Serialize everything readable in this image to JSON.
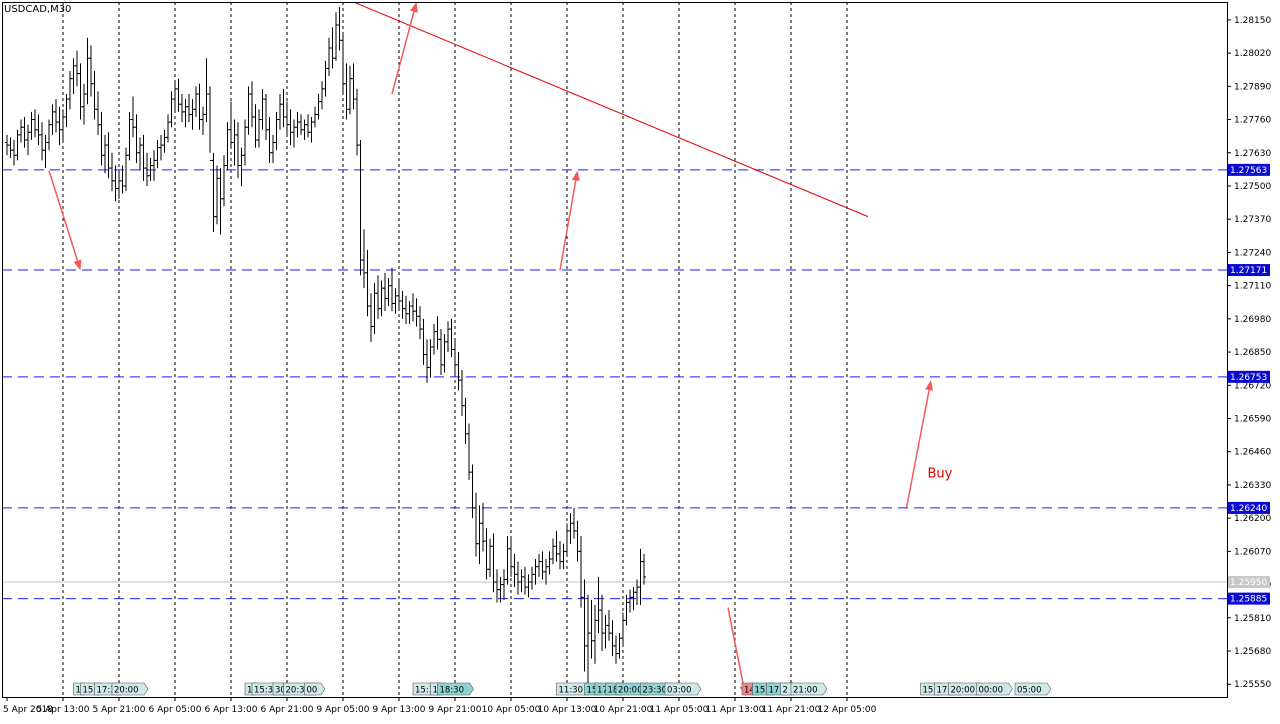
{
  "chart_data": {
    "type": "candlestick-ohlc-bars",
    "title": "USDCAD,M30",
    "symbol": "USDCAD",
    "timeframe": "M30",
    "ylim": [
      1.255,
      1.2822
    ],
    "current_price": 1.2595,
    "current_price_label": "1.25950",
    "y_ticks": [
      "1.28150",
      "1.28020",
      "1.27890",
      "1.27760",
      "1.27630",
      "1.27500",
      "1.27370",
      "1.27240",
      "1.27110",
      "1.26980",
      "1.26850",
      "1.26720",
      "1.26590",
      "1.26460",
      "1.26330",
      "1.26200",
      "1.26070",
      "1.25940",
      "1.25810",
      "1.25680",
      "1.25550"
    ],
    "x_ticks": [
      "5 Apr 2018",
      "5 Apr 13:00",
      "5 Apr 21:00",
      "6 Apr 05:00",
      "6 Apr 13:00",
      "6 Apr 21:00",
      "9 Apr 05:00",
      "9 Apr 13:00",
      "9 Apr 21:00",
      "10 Apr 05:00",
      "10 Apr 13:00",
      "10 Apr 21:00",
      "11 Apr 05:00",
      "11 Apr 13:00",
      "11 Apr 21:00",
      "12 Apr 05:00"
    ],
    "x_tick_index": [
      0,
      16,
      32,
      48,
      64,
      80,
      96,
      112,
      128,
      144,
      160,
      176,
      192,
      208,
      224,
      240
    ],
    "horizontal_levels": [
      {
        "value": 1.27563,
        "label": "1.27563"
      },
      {
        "value": 1.27171,
        "label": "1.27171"
      },
      {
        "value": 1.26753,
        "label": "1.26753"
      },
      {
        "value": 1.2624,
        "label": "1.26240"
      },
      {
        "value": 1.25885,
        "label": "1.25885"
      }
    ],
    "trendline": {
      "from": {
        "bar": 99,
        "price": 1.2822
      },
      "to": {
        "bar": 246,
        "price": 1.2738
      }
    },
    "arrows": [
      {
        "from": {
          "bar": 12,
          "price": 1.2756
        },
        "to": {
          "bar": 21,
          "price": 1.2717
        }
      },
      {
        "from": {
          "bar": 158,
          "price": 1.2717
        },
        "to": {
          "bar": 163,
          "price": 1.2756
        }
      },
      {
        "from": {
          "bar": 257,
          "price": 1.2624
        },
        "to": {
          "bar": 264,
          "price": 1.2674
        }
      },
      {
        "from": {
          "bar": 110,
          "price": 1.2786
        },
        "to": {
          "bar": 117,
          "price": 1.2822
        }
      },
      {
        "from": {
          "bar": 206,
          "price": 1.2585
        },
        "to": {
          "bar": 211,
          "price": 1.2549
        }
      }
    ],
    "annotation": {
      "text": "Buy",
      "bar": 263,
      "price": 1.2636
    },
    "event_markers": [
      {
        "bar": 19,
        "text": "1",
        "color": "#cfe8e8"
      },
      {
        "bar": 21,
        "text": "15:",
        "color": "#cfe8e8"
      },
      {
        "bar": 25,
        "text": "17:3",
        "color": "#cfe8e8"
      },
      {
        "bar": 30,
        "text": "20:00",
        "color": "#cfe8e8"
      },
      {
        "bar": 68,
        "text": "1",
        "color": "#cfe8e8"
      },
      {
        "bar": 70,
        "text": "15:30",
        "color": "#cfe8e8"
      },
      {
        "bar": 76,
        "text": "30",
        "color": "#cfe8e8"
      },
      {
        "bar": 79,
        "text": "20:30",
        "color": "#cfe8e8"
      },
      {
        "bar": 85,
        "text": "00",
        "color": "#cfe8e8"
      },
      {
        "bar": 116,
        "text": "15:1",
        "color": "#cfe8e8"
      },
      {
        "bar": 121,
        "text": "1",
        "color": "#cfe8e8"
      },
      {
        "bar": 123,
        "text": "18:30",
        "color": "#8fd4d4"
      },
      {
        "bar": 157,
        "text": "11:30",
        "color": "#cfe8e8"
      },
      {
        "bar": 165,
        "text": "15",
        "color": "#8fd4d4"
      },
      {
        "bar": 168,
        "text": "17",
        "color": "#8fd4d4"
      },
      {
        "bar": 171,
        "text": "18",
        "color": "#8fd4d4"
      },
      {
        "bar": 174,
        "text": "20:00",
        "color": "#8fd4d4"
      },
      {
        "bar": 181,
        "text": "23:30",
        "color": "#8fd4d4"
      },
      {
        "bar": 188,
        "text": "03:00",
        "color": "#cfe8e8"
      },
      {
        "bar": 210,
        "text": "14",
        "color": "#f28a8a"
      },
      {
        "bar": 213,
        "text": "15:",
        "color": "#8fd4d4"
      },
      {
        "bar": 217,
        "text": "17:3",
        "color": "#8fd4d4"
      },
      {
        "bar": 221,
        "text": "2",
        "color": "#cfe8e8"
      },
      {
        "bar": 224,
        "text": "21:00",
        "color": "#cfe8e8"
      },
      {
        "bar": 261,
        "text": "15:",
        "color": "#cfe8e8"
      },
      {
        "bar": 265,
        "text": "17:3",
        "color": "#cfe8e8"
      },
      {
        "bar": 269,
        "text": "20:00",
        "color": "#cfe8e8"
      },
      {
        "bar": 277,
        "text": "00:00",
        "color": "#cfe8e8"
      },
      {
        "bar": 288,
        "text": "05:00",
        "color": "#cfe8e8"
      }
    ],
    "bars": [
      [
        1.2767,
        1.277,
        1.2762,
        1.2766
      ],
      [
        1.2766,
        1.2769,
        1.2761,
        1.2764
      ],
      [
        1.2764,
        1.2768,
        1.2758,
        1.2762
      ],
      [
        1.2762,
        1.2772,
        1.276,
        1.277
      ],
      [
        1.277,
        1.2776,
        1.2767,
        1.2773
      ],
      [
        1.2773,
        1.2777,
        1.2765,
        1.2768
      ],
      [
        1.2768,
        1.2774,
        1.2762,
        1.2771
      ],
      [
        1.2771,
        1.2779,
        1.2768,
        1.2776
      ],
      [
        1.2776,
        1.278,
        1.2769,
        1.2772
      ],
      [
        1.2772,
        1.2778,
        1.2766,
        1.277
      ],
      [
        1.277,
        1.2775,
        1.276,
        1.2764
      ],
      [
        1.2764,
        1.277,
        1.2757,
        1.2767
      ],
      [
        1.2767,
        1.2776,
        1.2764,
        1.2774
      ],
      [
        1.2774,
        1.2782,
        1.277,
        1.2779
      ],
      [
        1.2779,
        1.2784,
        1.2771,
        1.2775
      ],
      [
        1.2775,
        1.2781,
        1.2766,
        1.2772
      ],
      [
        1.2772,
        1.278,
        1.2768,
        1.2777
      ],
      [
        1.2777,
        1.2786,
        1.2773,
        1.2784
      ],
      [
        1.2784,
        1.2795,
        1.278,
        1.2792
      ],
      [
        1.2792,
        1.28,
        1.2786,
        1.2797
      ],
      [
        1.2797,
        1.2803,
        1.2789,
        1.2794
      ],
      [
        1.2794,
        1.2798,
        1.2776,
        1.2781
      ],
      [
        1.2781,
        1.279,
        1.2774,
        1.2786
      ],
      [
        1.2786,
        1.2808,
        1.2782,
        1.28
      ],
      [
        1.28,
        1.2805,
        1.2785,
        1.279
      ],
      [
        1.279,
        1.2795,
        1.2776,
        1.278
      ],
      [
        1.278,
        1.2787,
        1.277,
        1.2774
      ],
      [
        1.2774,
        1.2779,
        1.2758,
        1.2762
      ],
      [
        1.2762,
        1.277,
        1.2755,
        1.2766
      ],
      [
        1.2766,
        1.2771,
        1.2753,
        1.2757
      ],
      [
        1.2757,
        1.2763,
        1.2748,
        1.2752
      ],
      [
        1.2752,
        1.2758,
        1.2744,
        1.2749
      ],
      [
        1.2749,
        1.2756,
        1.2745,
        1.2752
      ],
      [
        1.2752,
        1.2758,
        1.2747,
        1.275
      ],
      [
        1.275,
        1.2765,
        1.2748,
        1.2762
      ],
      [
        1.2762,
        1.2779,
        1.276,
        1.2776
      ],
      [
        1.2776,
        1.2785,
        1.2769,
        1.2773
      ],
      [
        1.2773,
        1.2778,
        1.2759,
        1.2763
      ],
      [
        1.2763,
        1.2769,
        1.2756,
        1.2766
      ],
      [
        1.2766,
        1.277,
        1.2752,
        1.2757
      ],
      [
        1.2757,
        1.2763,
        1.275,
        1.2754
      ],
      [
        1.2754,
        1.2761,
        1.2752,
        1.2758
      ],
      [
        1.2758,
        1.2764,
        1.2752,
        1.276
      ],
      [
        1.276,
        1.2768,
        1.2757,
        1.2765
      ],
      [
        1.2765,
        1.277,
        1.276,
        1.2766
      ],
      [
        1.2766,
        1.2772,
        1.2763,
        1.2769
      ],
      [
        1.2769,
        1.2778,
        1.2767,
        1.2775
      ],
      [
        1.2775,
        1.2787,
        1.2773,
        1.2784
      ],
      [
        1.2784,
        1.2791,
        1.2779,
        1.2788
      ],
      [
        1.2788,
        1.2792,
        1.2779,
        1.2782
      ],
      [
        1.2782,
        1.2786,
        1.2775,
        1.2779
      ],
      [
        1.2779,
        1.2784,
        1.2773,
        1.2781
      ],
      [
        1.2781,
        1.2786,
        1.2775,
        1.2778
      ],
      [
        1.2778,
        1.2784,
        1.2772,
        1.278
      ],
      [
        1.278,
        1.2789,
        1.2777,
        1.2786
      ],
      [
        1.2786,
        1.279,
        1.2772,
        1.2776
      ],
      [
        1.2776,
        1.2781,
        1.277,
        1.2778
      ],
      [
        1.2778,
        1.28,
        1.2775,
        1.2786
      ],
      [
        1.2786,
        1.2789,
        1.2763,
        1.276
      ],
      [
        1.276,
        1.2763,
        1.2732,
        1.2738
      ],
      [
        1.2738,
        1.2758,
        1.2735,
        1.2753
      ],
      [
        1.2753,
        1.2757,
        1.2731,
        1.2745
      ],
      [
        1.2745,
        1.2762,
        1.2742,
        1.2758
      ],
      [
        1.2758,
        1.2775,
        1.2756,
        1.2772
      ],
      [
        1.2772,
        1.2783,
        1.2765,
        1.2767
      ],
      [
        1.2767,
        1.2776,
        1.2758,
        1.277
      ],
      [
        1.277,
        1.2775,
        1.2753,
        1.2758
      ],
      [
        1.2758,
        1.2765,
        1.275,
        1.2762
      ],
      [
        1.2762,
        1.2776,
        1.2758,
        1.2773
      ],
      [
        1.2773,
        1.2789,
        1.277,
        1.2786
      ],
      [
        1.2786,
        1.2791,
        1.2773,
        1.2777
      ],
      [
        1.2777,
        1.2782,
        1.2765,
        1.2768
      ],
      [
        1.2768,
        1.278,
        1.2765,
        1.2776
      ],
      [
        1.2776,
        1.2788,
        1.2772,
        1.2784
      ],
      [
        1.2784,
        1.2786,
        1.2768,
        1.2772
      ],
      [
        1.2772,
        1.2777,
        1.2759,
        1.2763
      ],
      [
        1.2763,
        1.277,
        1.2759,
        1.2767
      ],
      [
        1.2767,
        1.2779,
        1.2764,
        1.2776
      ],
      [
        1.2776,
        1.2786,
        1.2772,
        1.2782
      ],
      [
        1.2782,
        1.2788,
        1.2773,
        1.2777
      ],
      [
        1.2777,
        1.2783,
        1.277,
        1.2774
      ],
      [
        1.2774,
        1.278,
        1.2766,
        1.2771
      ],
      [
        1.2771,
        1.2776,
        1.2765,
        1.2773
      ],
      [
        1.2773,
        1.2779,
        1.2769,
        1.2775
      ],
      [
        1.2775,
        1.2778,
        1.277,
        1.2772
      ],
      [
        1.2772,
        1.2776,
        1.2768,
        1.2774
      ],
      [
        1.2774,
        1.2778,
        1.2769,
        1.2771
      ],
      [
        1.2771,
        1.2777,
        1.2767,
        1.2775
      ],
      [
        1.2775,
        1.2781,
        1.2773,
        1.2778
      ],
      [
        1.2778,
        1.2786,
        1.2776,
        1.2783
      ],
      [
        1.2783,
        1.2791,
        1.278,
        1.2788
      ],
      [
        1.2788,
        1.2799,
        1.2785,
        1.2796
      ],
      [
        1.2796,
        1.2808,
        1.2793,
        1.2804
      ],
      [
        1.2804,
        1.2812,
        1.2796,
        1.28
      ],
      [
        1.28,
        1.2818,
        1.2799,
        1.2813
      ],
      [
        1.2813,
        1.282,
        1.2803,
        1.2807
      ],
      [
        1.2807,
        1.281,
        1.2786,
        1.279
      ],
      [
        1.279,
        1.2798,
        1.2776,
        1.278
      ],
      [
        1.278,
        1.2797,
        1.2778,
        1.2792
      ],
      [
        1.2792,
        1.2798,
        1.278,
        1.2784
      ],
      [
        1.2784,
        1.2788,
        1.2762,
        1.2766
      ],
      [
        1.2766,
        1.2768,
        1.2715,
        1.2721
      ],
      [
        1.2721,
        1.2733,
        1.271,
        1.2716
      ],
      [
        1.2716,
        1.2725,
        1.2699,
        1.2703
      ],
      [
        1.2703,
        1.2708,
        1.2689,
        1.2695
      ],
      [
        1.2695,
        1.2712,
        1.2692,
        1.2708
      ],
      [
        1.2708,
        1.2715,
        1.2698,
        1.2702
      ],
      [
        1.2702,
        1.2713,
        1.2699,
        1.271
      ],
      [
        1.271,
        1.2716,
        1.2701,
        1.2706
      ],
      [
        1.2706,
        1.2714,
        1.2703,
        1.2711
      ],
      [
        1.2711,
        1.2718,
        1.2701,
        1.2704
      ],
      [
        1.2704,
        1.271,
        1.27,
        1.2707
      ],
      [
        1.2707,
        1.2713,
        1.2702,
        1.2705
      ],
      [
        1.2705,
        1.2709,
        1.2698,
        1.2702
      ],
      [
        1.2702,
        1.2707,
        1.2696,
        1.27
      ],
      [
        1.27,
        1.2705,
        1.2696,
        1.2703
      ],
      [
        1.2703,
        1.2708,
        1.2697,
        1.2701
      ],
      [
        1.2701,
        1.2706,
        1.2695,
        1.2699
      ],
      [
        1.2699,
        1.2703,
        1.269,
        1.2694
      ],
      [
        1.2694,
        1.2698,
        1.268,
        1.2684
      ],
      [
        1.2684,
        1.269,
        1.2673,
        1.2679
      ],
      [
        1.2679,
        1.269,
        1.2675,
        1.2687
      ],
      [
        1.2687,
        1.2696,
        1.2684,
        1.2693
      ],
      [
        1.2693,
        1.2699,
        1.2686,
        1.269
      ],
      [
        1.269,
        1.2694,
        1.2676,
        1.268
      ],
      [
        1.268,
        1.2692,
        1.2677,
        1.2689
      ],
      [
        1.2689,
        1.2697,
        1.2685,
        1.2694
      ],
      [
        1.2694,
        1.2698,
        1.2683,
        1.2686
      ],
      [
        1.2686,
        1.269,
        1.2676,
        1.268
      ],
      [
        1.268,
        1.2685,
        1.267,
        1.2674
      ],
      [
        1.2674,
        1.2678,
        1.266,
        1.2664
      ],
      [
        1.2664,
        1.2667,
        1.2649,
        1.2653
      ],
      [
        1.2653,
        1.2657,
        1.2635,
        1.2638
      ],
      [
        1.2638,
        1.2641,
        1.262,
        1.2624
      ],
      [
        1.2624,
        1.263,
        1.2605,
        1.261
      ],
      [
        1.261,
        1.2625,
        1.2602,
        1.2618
      ],
      [
        1.2618,
        1.2626,
        1.2607,
        1.2611
      ],
      [
        1.2611,
        1.2616,
        1.2596,
        1.26
      ],
      [
        1.26,
        1.2612,
        1.2597,
        1.2609
      ],
      [
        1.2609,
        1.2614,
        1.2591,
        1.2595
      ],
      [
        1.2595,
        1.26,
        1.2587,
        1.2592
      ],
      [
        1.2592,
        1.2597,
        1.2587,
        1.2594
      ],
      [
        1.2594,
        1.26,
        1.2588,
        1.2596
      ],
      [
        1.2596,
        1.2613,
        1.2594,
        1.2608
      ],
      [
        1.2608,
        1.2612,
        1.2597,
        1.2601
      ],
      [
        1.2601,
        1.2606,
        1.2593,
        1.2598
      ],
      [
        1.2598,
        1.2603,
        1.259,
        1.2595
      ],
      [
        1.2595,
        1.26,
        1.2591,
        1.2597
      ],
      [
        1.2597,
        1.2601,
        1.259,
        1.2593
      ],
      [
        1.2593,
        1.2598,
        1.2589,
        1.2595
      ],
      [
        1.2595,
        1.2601,
        1.2592,
        1.2598
      ],
      [
        1.2598,
        1.2604,
        1.2594,
        1.2601
      ],
      [
        1.2601,
        1.2606,
        1.2597,
        1.2603
      ],
      [
        1.2603,
        1.2607,
        1.2596,
        1.2599
      ],
      [
        1.2599,
        1.2604,
        1.2594,
        1.2601
      ],
      [
        1.2601,
        1.2607,
        1.2598,
        1.2604
      ],
      [
        1.2604,
        1.2612,
        1.2602,
        1.2609
      ],
      [
        1.2609,
        1.2615,
        1.2603,
        1.2606
      ],
      [
        1.2606,
        1.2611,
        1.26,
        1.2603
      ],
      [
        1.2603,
        1.261,
        1.26,
        1.2607
      ],
      [
        1.2607,
        1.2618,
        1.2605,
        1.2615
      ],
      [
        1.2615,
        1.2622,
        1.261,
        1.2618
      ],
      [
        1.2618,
        1.2624,
        1.2612,
        1.2615
      ],
      [
        1.2615,
        1.2619,
        1.2603,
        1.2607
      ],
      [
        1.2607,
        1.2613,
        1.2585,
        1.2589
      ],
      [
        1.2589,
        1.2596,
        1.256,
        1.257
      ],
      [
        1.257,
        1.259,
        1.2555,
        1.2575
      ],
      [
        1.2575,
        1.2588,
        1.2565,
        1.2572
      ],
      [
        1.2572,
        1.2586,
        1.2563,
        1.258
      ],
      [
        1.258,
        1.2597,
        1.2575,
        1.2584
      ],
      [
        1.2584,
        1.259,
        1.2568,
        1.2575
      ],
      [
        1.2575,
        1.2582,
        1.2569,
        1.2578
      ],
      [
        1.2578,
        1.2584,
        1.2572,
        1.2575
      ],
      [
        1.2575,
        1.258,
        1.2566,
        1.257
      ],
      [
        1.257,
        1.2574,
        1.2563,
        1.2567
      ],
      [
        1.2567,
        1.2575,
        1.2565,
        1.2573
      ],
      [
        1.2573,
        1.2583,
        1.257,
        1.258
      ],
      [
        1.258,
        1.259,
        1.2578,
        1.2587
      ],
      [
        1.2587,
        1.2592,
        1.2583,
        1.2589
      ],
      [
        1.2589,
        1.2593,
        1.2584,
        1.2591
      ],
      [
        1.2591,
        1.2596,
        1.2586,
        1.2593
      ],
      [
        1.2593,
        1.2608,
        1.2586,
        1.2603
      ],
      [
        1.2603,
        1.2606,
        1.2594,
        1.2597
      ]
    ]
  }
}
